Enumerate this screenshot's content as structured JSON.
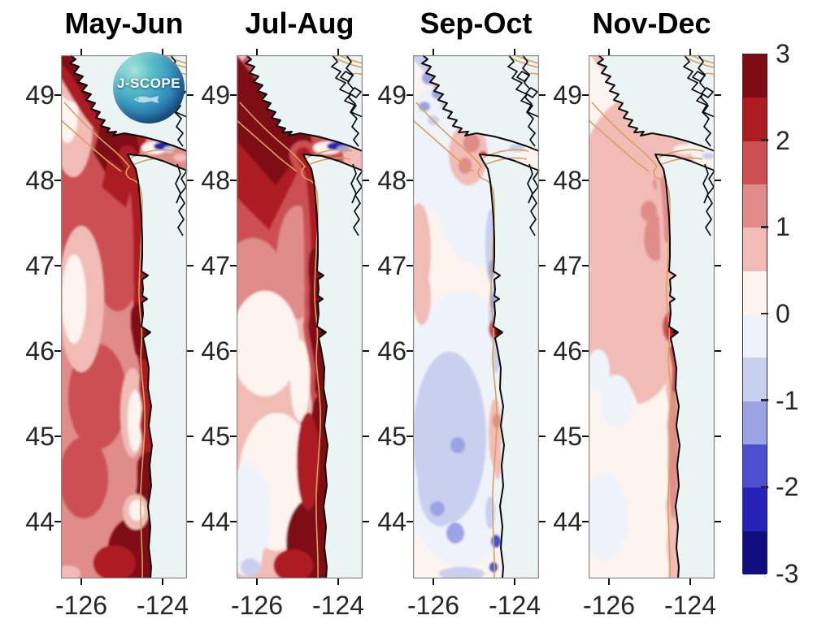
{
  "page": {
    "background": "#ffffff",
    "kind": "Scientific figure: four bimonthly anomaly maps with shared diverging colorbar"
  },
  "logo": {
    "text": "J-SCOPE"
  },
  "chart_data": {
    "type": "heatmap",
    "subtype": "geographic-anomaly-maps",
    "region": "Washington-Oregon coast, Vancouver Island and Strait of Juan de Fuca",
    "panels": [
      {
        "title": "May-Jun",
        "pattern": "Strong warm anomaly (+1 to +3) over almost the whole domain; darkest red (+2.5 to +3) hugging Vancouver Island, the strait mouth, the nearshore band and the south coast; mottled +0.5 to +1.5 offshore; small cool patch inside the Strait of Juan de Fuca."
      },
      {
        "title": "Jul-Aug",
        "pattern": "Intense dark-red wedge (+2.5 to +3) along Vancouver Island and the northern domain; very warm narrow band along the Washington-Oregon coast, widest in the south; near-neutral to slightly cool (-0.5 to 0) offshore in the southwest; cool blue streak inside the strait."
      },
      {
        "title": "Sep-Oct",
        "pattern": "Mostly near-neutral (-0.5 to +0.5); weak cool anomalies (-1 to -0.5) offshore in the south and along the Vancouver Island coast; narrow cool band at the coast; warm patch near the strait entrance; strong warm spot (+2 to +3) at the Columbia River mouth (~46.2N)."
      },
      {
        "title": "Nov-Dec",
        "pattern": "Weak warm anomaly (0 to +1) everywhere; slightly warmer (+0.5 to +1) near the strait entrance and in a nearshore band; strong warm spot (+2 to +3) at the Columbia River mouth."
      }
    ],
    "x_tick_labels": [
      "-126",
      "-124"
    ],
    "y_tick_labels": [
      "49",
      "48",
      "47",
      "46",
      "45",
      "44"
    ],
    "lon_ticks": [
      -126,
      -124
    ],
    "lat_ticks": [
      49,
      48,
      47,
      46,
      45,
      44
    ],
    "axes": {
      "lon_range": [
        -126.5,
        -123.4
      ],
      "lat_range": [
        43.3,
        49.5
      ],
      "grid": false,
      "ticks": "outward on all four box edges"
    },
    "colorbar": {
      "position": "right",
      "range": [
        -3,
        3
      ],
      "step": 0.5,
      "tick_labels": [
        "3",
        "2",
        "1",
        "0",
        "-1",
        "-2",
        "-3"
      ],
      "colors_low_to_high": [
        "#120d7e",
        "#2722b8",
        "#4c50d0",
        "#9aa3e4",
        "#c9cfee",
        "#eef3fa",
        "#fdf3ef",
        "#f1bcb6",
        "#e08c8a",
        "#cc5052",
        "#ac1b20",
        "#7e0c12"
      ]
    },
    "map_colors": {
      "land": "#eaf4f2",
      "coastline": "#0a0a0a",
      "isobath_contour": "#d7a05c",
      "frame": "#888888",
      "tick": "#111111",
      "label": "#262626"
    }
  }
}
